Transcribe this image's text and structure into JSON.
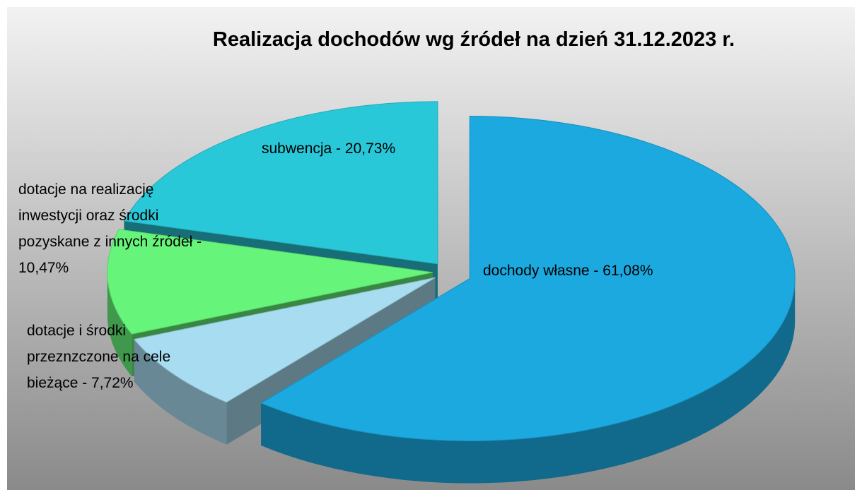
{
  "chart_data": {
    "type": "pie3d",
    "title": "Realizacja dochodów wg źródeł na dzień 31.12.2023 r.",
    "values": [
      61.08,
      7.72,
      10.47,
      20.73
    ],
    "value_labels": [
      "dochody własne - 61,08%",
      "dotacje i środki przeznzczone na cele bieżące - 7,72%",
      "dotacje na realizację inwestycji oraz środki pozyskane z innych źródeł - 10,47%",
      "subwencja - 20,73%"
    ],
    "colors": [
      "#1ba9e0",
      "#a8dcf0",
      "#66f57a",
      "#29c8d8"
    ]
  }
}
